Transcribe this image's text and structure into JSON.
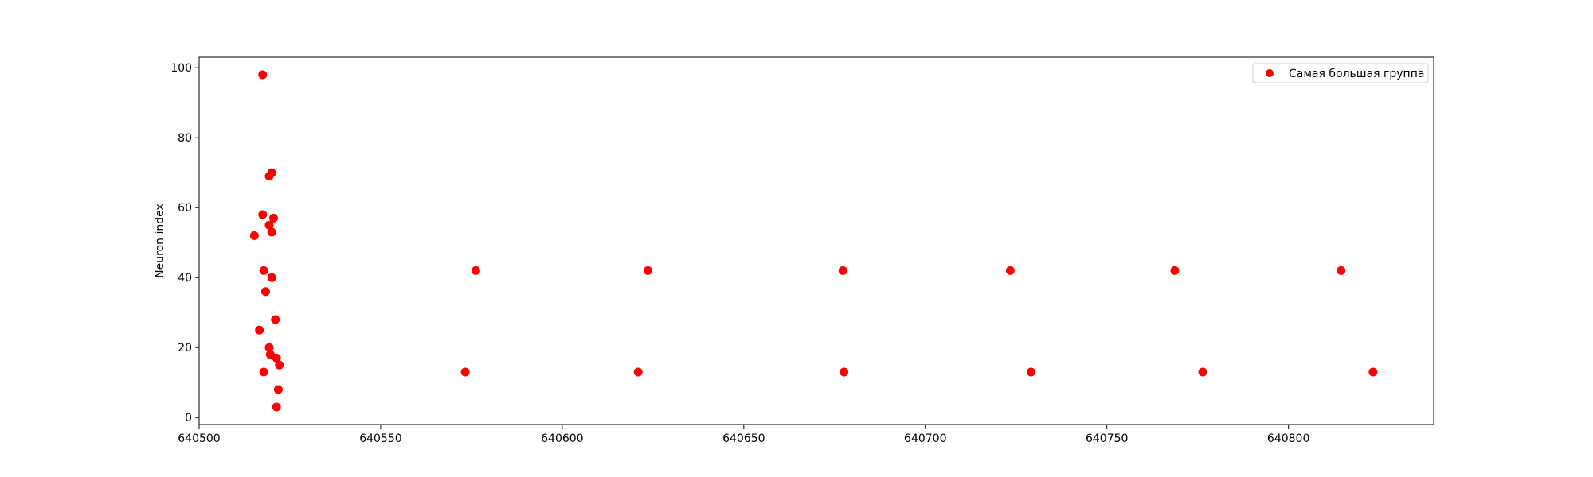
{
  "chart_data": {
    "type": "scatter",
    "xlabel": "",
    "ylabel": "Neuron index",
    "xlim": [
      640500,
      640840
    ],
    "ylim": [
      -2,
      103
    ],
    "xticks": [
      640500,
      640550,
      640600,
      640650,
      640700,
      640750,
      640800
    ],
    "yticks": [
      0,
      20,
      40,
      60,
      80,
      100
    ],
    "grid": false,
    "legend_position": "top-right",
    "series": [
      {
        "name": "Самая большая группа",
        "color": "#ff0000",
        "points": [
          {
            "x": 640517.5,
            "y": 98
          },
          {
            "x": 640520.0,
            "y": 70
          },
          {
            "x": 640519.3,
            "y": 69
          },
          {
            "x": 640517.5,
            "y": 58
          },
          {
            "x": 640520.5,
            "y": 57
          },
          {
            "x": 640519.3,
            "y": 55
          },
          {
            "x": 640520.0,
            "y": 53
          },
          {
            "x": 640515.2,
            "y": 52
          },
          {
            "x": 640517.8,
            "y": 42
          },
          {
            "x": 640520.0,
            "y": 40
          },
          {
            "x": 640518.3,
            "y": 36
          },
          {
            "x": 640521.0,
            "y": 28
          },
          {
            "x": 640516.6,
            "y": 25
          },
          {
            "x": 640519.3,
            "y": 20
          },
          {
            "x": 640519.6,
            "y": 18
          },
          {
            "x": 640521.3,
            "y": 17
          },
          {
            "x": 640522.1,
            "y": 15
          },
          {
            "x": 640517.8,
            "y": 13
          },
          {
            "x": 640521.8,
            "y": 8
          },
          {
            "x": 640521.3,
            "y": 3
          },
          {
            "x": 640576.2,
            "y": 42
          },
          {
            "x": 640623.6,
            "y": 42
          },
          {
            "x": 640677.3,
            "y": 42
          },
          {
            "x": 640723.4,
            "y": 42
          },
          {
            "x": 640768.7,
            "y": 42
          },
          {
            "x": 640814.5,
            "y": 42
          },
          {
            "x": 640573.3,
            "y": 13
          },
          {
            "x": 640620.9,
            "y": 13
          },
          {
            "x": 640677.6,
            "y": 13
          },
          {
            "x": 640729.1,
            "y": 13
          },
          {
            "x": 640776.4,
            "y": 13
          },
          {
            "x": 640823.3,
            "y": 13
          }
        ]
      }
    ]
  }
}
